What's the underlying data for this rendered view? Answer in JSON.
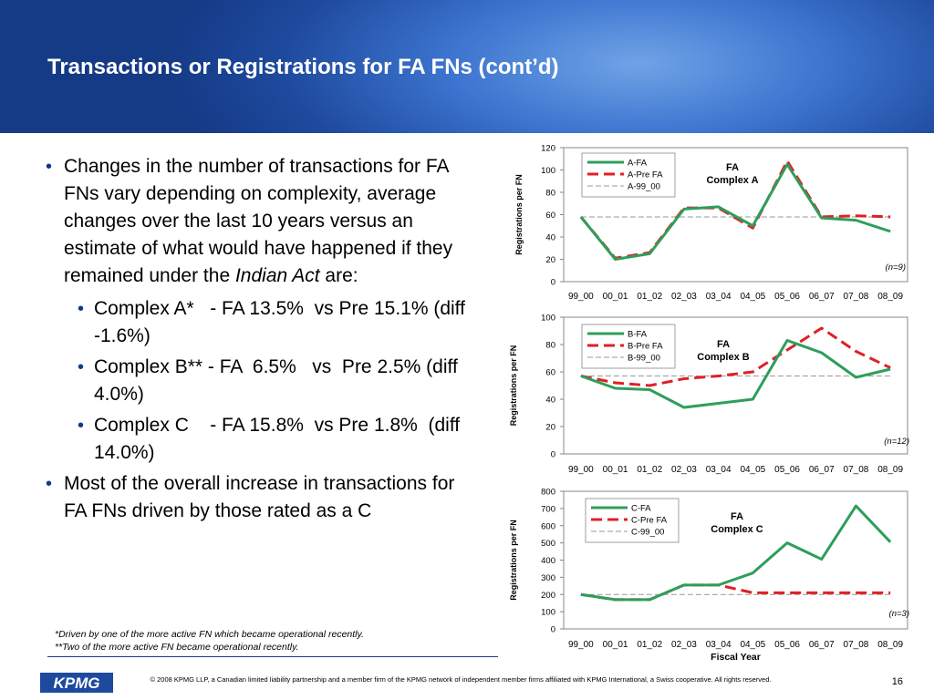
{
  "slide": {
    "title": "Transactions or Registrations for FA FNs (cont’d)",
    "bullets": {
      "b1_text": "Changes in the number of transactions for FA FNs vary depending on complexity, average changes over the last 10 years versus an estimate of what would have happened if they remained under the ",
      "b1_em": "Indian Act",
      "b1_tail": " are:",
      "sub1": "Complex A*   - FA 13.5%  vs Pre 15.1% (diff  -1.6%)",
      "sub2": "Complex B** - FA  6.5%   vs  Pre 2.5% (diff 4.0%)",
      "sub3": "Complex C    - FA 15.8%  vs Pre 1.8%  (diff 14.0%)",
      "b2_text": "Most of the overall increase in transactions for FA FNs driven by those rated as a C"
    },
    "notes": [
      "*Driven by one of the more active FN which became operational recently.",
      "**Two of the more active FN became operational recently."
    ],
    "footer": "© 2008 KPMG LLP, a Canadian limited liability partnership and a member firm of the KPMG network of independent member firms affiliated with KPMG International, a Swiss cooperative. All rights reserved.",
    "page_number": "16",
    "logo_text": "KPMG",
    "colors": {
      "fa_line": "#2e9e5b",
      "pre_line": "#e01f26",
      "baseline": "#999999",
      "brand": "#1e4a9e"
    }
  },
  "chart_data": [
    {
      "type": "line",
      "categories": [
        "99_00",
        "00_01",
        "01_02",
        "02_03",
        "03_04",
        "04_05",
        "05_06",
        "06_07",
        "07_08",
        "08_09"
      ],
      "series": [
        {
          "name": "A-FA",
          "values": [
            58,
            20,
            25,
            65,
            67,
            50,
            105,
            57,
            55,
            45
          ]
        },
        {
          "name": "A-Pre FA",
          "values": [
            58,
            21,
            26,
            66,
            66,
            48,
            108,
            58,
            59,
            58
          ]
        },
        {
          "name": "A-99_00",
          "values": [
            58,
            58,
            58,
            58,
            58,
            58,
            58,
            58,
            58,
            58
          ]
        }
      ],
      "ylim": [
        0,
        120
      ],
      "yticks": [
        0,
        20,
        40,
        60,
        80,
        100,
        120
      ],
      "ylabel": "Registrations per FN",
      "xlabel": "",
      "annotation": [
        "FA",
        "Complex A"
      ],
      "n_label": "(n=9)",
      "legend": "top-left"
    },
    {
      "type": "line",
      "categories": [
        "99_00",
        "00_01",
        "01_02",
        "02_03",
        "03_04",
        "04_05",
        "05_06",
        "06_07",
        "07_08",
        "08_09"
      ],
      "series": [
        {
          "name": "B-FA",
          "values": [
            57,
            48,
            47,
            34,
            37,
            40,
            83,
            74,
            56,
            62
          ]
        },
        {
          "name": "B-Pre FA",
          "values": [
            57,
            52,
            50,
            55,
            57,
            60,
            76,
            92,
            75,
            63
          ]
        },
        {
          "name": "B-99_00",
          "values": [
            57,
            57,
            57,
            57,
            57,
            57,
            57,
            57,
            57,
            57
          ]
        }
      ],
      "ylim": [
        0,
        100
      ],
      "yticks": [
        0,
        20,
        40,
        60,
        80,
        100
      ],
      "ylabel": "Registrations per FN",
      "xlabel": "",
      "annotation": [
        "FA",
        "Complex B"
      ],
      "n_label": "(n=12)",
      "legend": "top-left"
    },
    {
      "type": "line",
      "categories": [
        "99_00",
        "00_01",
        "01_02",
        "02_03",
        "03_04",
        "04_05",
        "05_06",
        "06_07",
        "07_08",
        "08_09"
      ],
      "series": [
        {
          "name": "C-FA",
          "values": [
            200,
            170,
            170,
            255,
            255,
            325,
            500,
            405,
            715,
            505
          ]
        },
        {
          "name": "C-Pre FA",
          "values": [
            200,
            170,
            170,
            255,
            255,
            210,
            210,
            210,
            210,
            210
          ]
        },
        {
          "name": "C-99_00",
          "values": [
            200,
            200,
            200,
            200,
            200,
            200,
            200,
            200,
            200,
            200
          ]
        }
      ],
      "ylim": [
        0,
        800
      ],
      "yticks": [
        0,
        100,
        200,
        300,
        400,
        500,
        600,
        700,
        800
      ],
      "ylabel": "Registrations per FN",
      "xlabel": "Fiscal Year",
      "annotation": [
        "FA",
        "Complex C"
      ],
      "n_label": "(n=3)",
      "legend": "top-left"
    }
  ]
}
